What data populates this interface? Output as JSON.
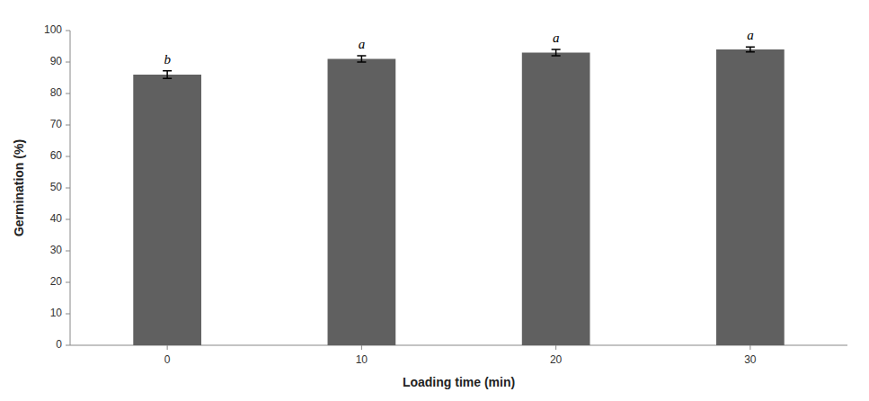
{
  "chart_data": {
    "type": "bar",
    "categories": [
      "0",
      "10",
      "20",
      "30"
    ],
    "values": [
      86.0,
      91.0,
      93.0,
      94.0
    ],
    "errors": [
      1.2,
      1.0,
      1.0,
      0.8
    ],
    "annotations": [
      "b",
      "a",
      "a",
      "a"
    ],
    "color": "#606060",
    "xlabel": "Loading time (min)",
    "ylabel": "Germination (%)",
    "ylim": [
      0,
      100
    ],
    "yticks": [
      0,
      10,
      20,
      30,
      40,
      50,
      60,
      70,
      80,
      90,
      100
    ],
    "grid": false
  }
}
